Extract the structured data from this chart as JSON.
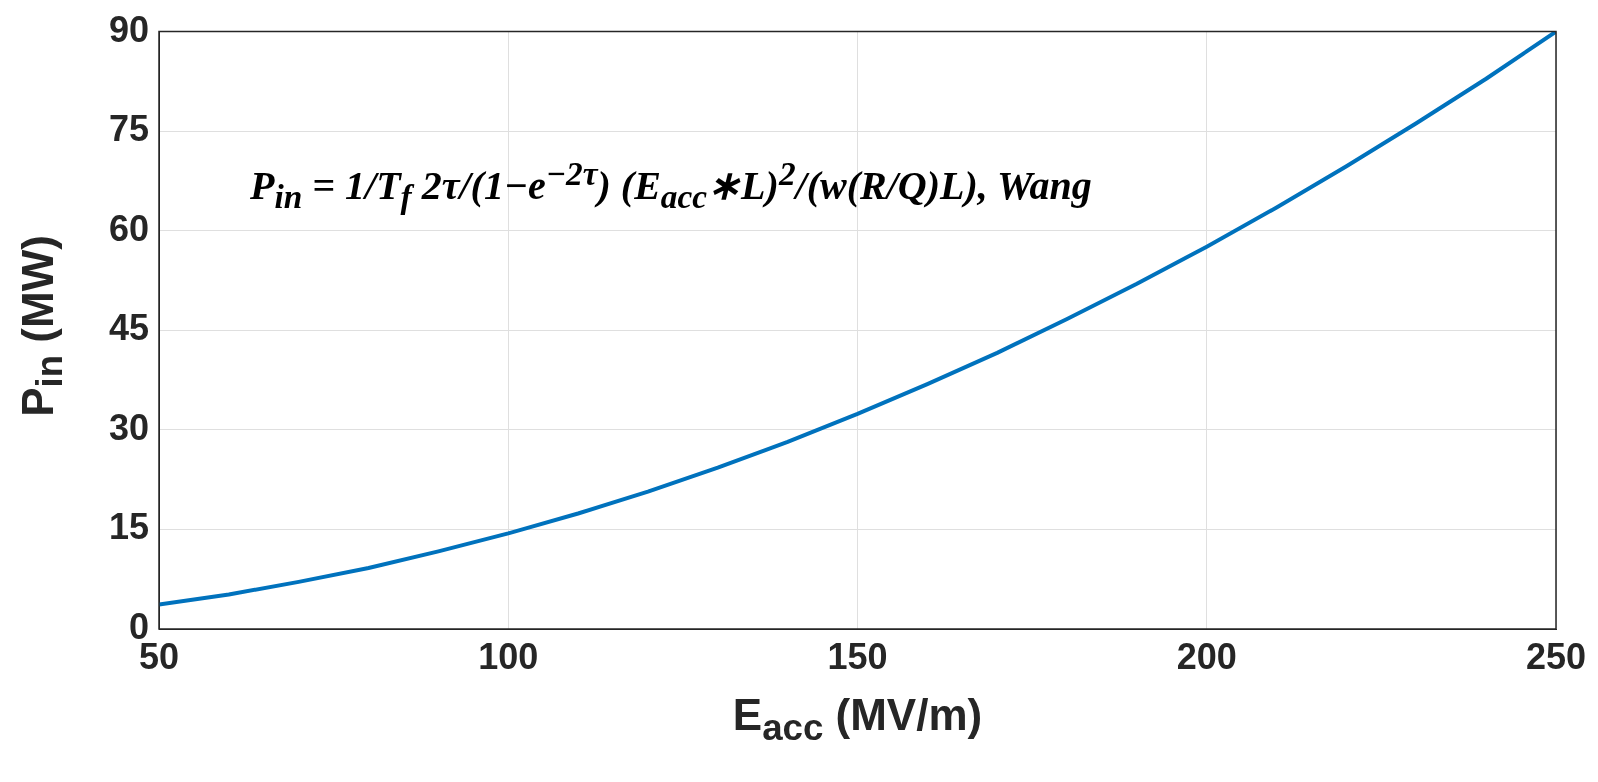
{
  "chart_data": {
    "type": "line",
    "xlabel": "E$_{acc}$ (MV/m)",
    "ylabel": "P$_{in}$ (MW)",
    "annotations": [
      "P$_{in}$ = 1/T$_{f}$ 2τ/(1−e$^{−2τ}$) (E$_{acc}$∗L)$^{2}$/(w(R/Q)L), Wang"
    ],
    "x": [
      50,
      60,
      70,
      80,
      90,
      100,
      110,
      120,
      130,
      140,
      150,
      160,
      170,
      180,
      190,
      200,
      210,
      220,
      230,
      240,
      250
    ],
    "series": [
      {
        "color": "#0072bd",
        "values": [
          3.7,
          5.2,
          7.1,
          9.2,
          11.7,
          14.4,
          17.4,
          20.7,
          24.3,
          28.2,
          32.4,
          36.9,
          41.6,
          46.7,
          52.0,
          57.6,
          63.5,
          69.7,
          76.2,
          82.9,
          90
        ]
      }
    ],
    "xlim": [
      50,
      250
    ],
    "ylim": [
      0,
      90
    ],
    "xticks": [
      50,
      100,
      150,
      200,
      250
    ],
    "yticks": [
      0,
      15,
      30,
      45,
      60,
      75,
      90
    ],
    "grid": true,
    "marker": "none"
  }
}
